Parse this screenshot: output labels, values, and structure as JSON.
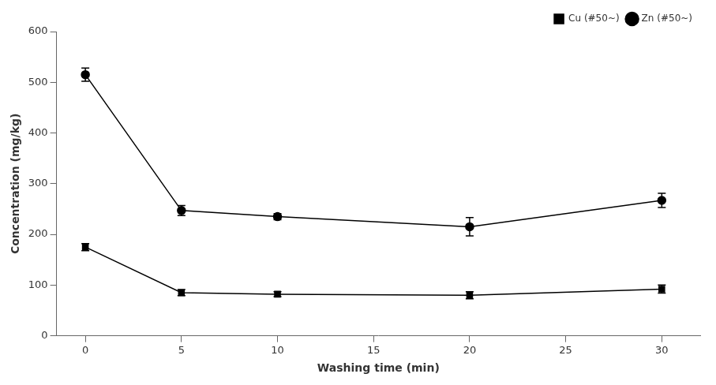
{
  "chart_data": {
    "type": "line",
    "x": [
      0,
      5,
      10,
      20,
      30
    ],
    "series": [
      {
        "name": "Cu (#50~)",
        "color": "#000000",
        "marker": "square",
        "values": [
          175,
          85,
          82,
          80,
          92
        ],
        "yerr": [
          7,
          6,
          5,
          7,
          8
        ]
      },
      {
        "name": "Zn (#50~)",
        "color": "#000000",
        "marker": "circle",
        "values": [
          515,
          247,
          235,
          215,
          267
        ],
        "yerr": [
          13,
          10,
          6,
          18,
          14
        ]
      }
    ],
    "xlabel": "Washing time (min)",
    "ylabel": "Concentration (mg/kg)",
    "xlim": [
      -1.5,
      32
    ],
    "ylim": [
      0,
      600
    ],
    "xticks": [
      0,
      5,
      10,
      15,
      20,
      25,
      30
    ],
    "yticks": [
      0,
      100,
      200,
      300,
      400,
      500,
      600
    ],
    "grid": false,
    "legend": "upper right"
  }
}
